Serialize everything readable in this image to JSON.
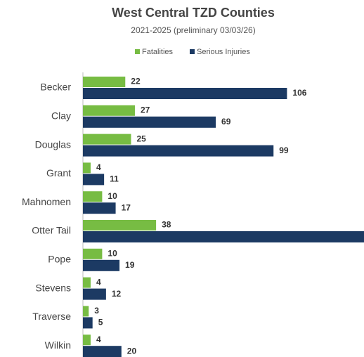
{
  "chart_data": {
    "type": "bar",
    "orientation": "horizontal",
    "title": "West Central TZD Counties",
    "subtitle": "2021-2025 (preliminary 03/03/26)",
    "categories": [
      "Becker",
      "Clay",
      "Douglas",
      "Grant",
      "Mahnomen",
      "Otter Tail",
      "Pope",
      "Stevens",
      "Traverse",
      "Wilkin"
    ],
    "series": [
      {
        "name": "Fatalities",
        "color": "#77bc43",
        "values": [
          22,
          27,
          25,
          4,
          10,
          38,
          10,
          4,
          3,
          4
        ]
      },
      {
        "name": "Serious Injuries",
        "color": "#1c3a63",
        "values": [
          106,
          69,
          99,
          11,
          17,
          150,
          19,
          12,
          5,
          20
        ]
      }
    ],
    "xlim": [
      0,
      146
    ],
    "legend": "top"
  }
}
